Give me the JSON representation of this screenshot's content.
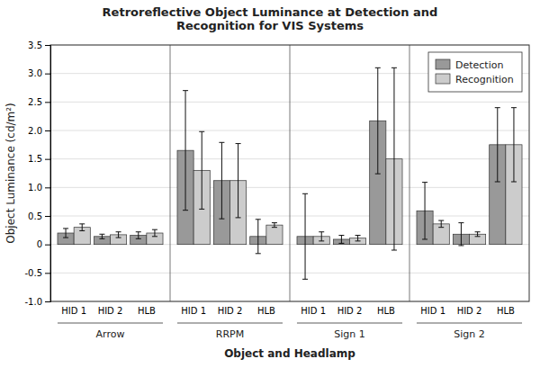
{
  "chart_data": {
    "type": "bar",
    "title": "Retroreflective Object Luminance at Detection and\nRecognition for VIS Systems",
    "xlabel": "Object and Headlamp",
    "ylabel": "Object Luminance (cd/m²)",
    "groups": [
      "Arrow",
      "RRPM",
      "Sign 1",
      "Sign 2"
    ],
    "categories": [
      "HID 1",
      "HID 2",
      "HLB"
    ],
    "series": [
      {
        "name": "Detection",
        "color": "#999999",
        "values": [
          [
            0.2,
            0.14,
            0.16
          ],
          [
            1.65,
            1.12,
            0.14
          ],
          [
            0.14,
            0.09,
            2.17
          ],
          [
            0.59,
            0.18,
            1.75
          ]
        ],
        "errors": [
          [
            0.08,
            0.04,
            0.06
          ],
          [
            1.05,
            0.67,
            0.3
          ],
          [
            0.75,
            0.07,
            0.93
          ],
          [
            0.5,
            0.2,
            0.65
          ]
        ]
      },
      {
        "name": "Recognition",
        "color": "#cccccc",
        "values": [
          [
            0.3,
            0.17,
            0.2
          ],
          [
            1.3,
            1.12,
            0.34
          ],
          [
            0.14,
            0.11,
            1.5
          ],
          [
            0.36,
            0.18,
            1.75
          ]
        ],
        "errors": [
          [
            0.06,
            0.05,
            0.06
          ],
          [
            0.68,
            0.65,
            0.04
          ],
          [
            0.08,
            0.05,
            1.6
          ],
          [
            0.06,
            0.04,
            0.65
          ]
        ]
      }
    ],
    "ylim": [
      -1.0,
      3.5
    ],
    "yticks": [
      {
        "value": -1.0,
        "label": "-1.0"
      },
      -0.5,
      0,
      0.5,
      {
        "value": 1.0,
        "label": "1.0"
      },
      1.5,
      {
        "value": 2.0,
        "label": "2.0"
      },
      2.5,
      {
        "value": 3.0,
        "label": "3.0"
      },
      3.5
    ],
    "grid": true,
    "legend": "upper right"
  }
}
